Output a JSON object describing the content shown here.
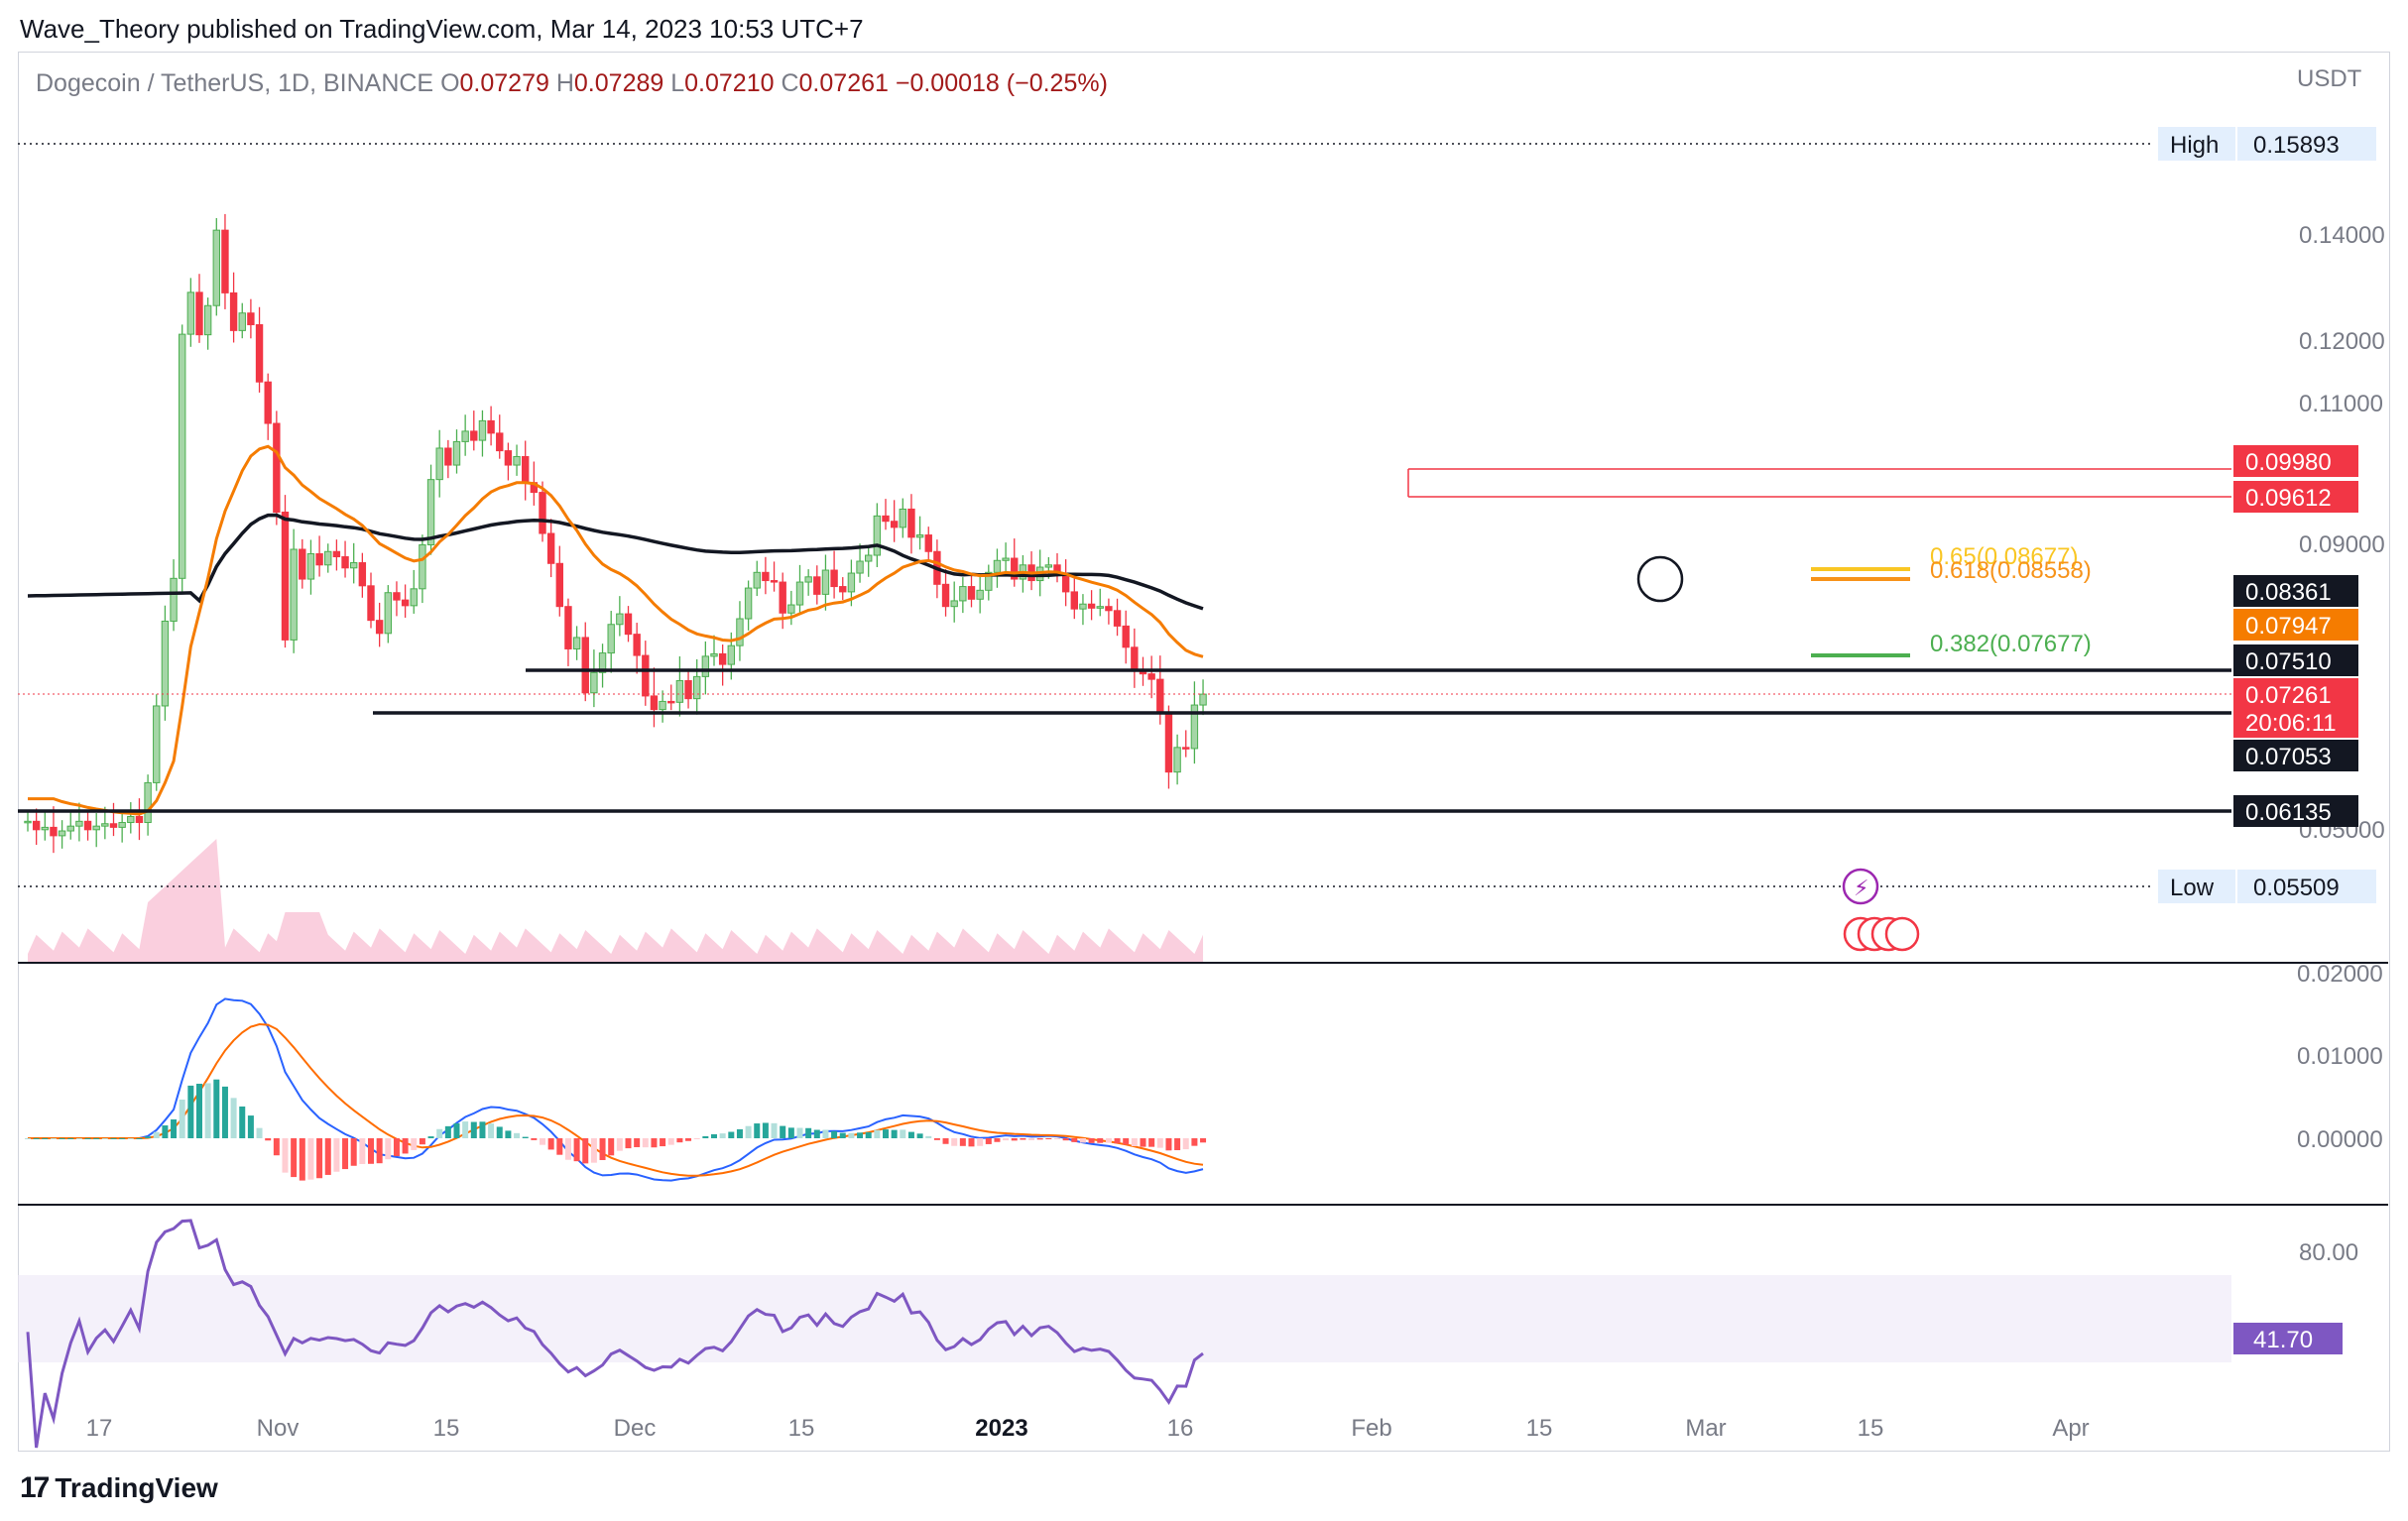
{
  "publisher": "Wave_Theory published on TradingView.com, Mar 14, 2023 10:53 UTC+7",
  "symbol": {
    "name": "Dogecoin / TetherUS, 1D, BINANCE",
    "o_label": "O",
    "o": "0.07279",
    "h_label": "H",
    "h": "0.07289",
    "l_label": "L",
    "l": "0.07210",
    "c_label": "C",
    "c": "0.07261",
    "change": "−0.00018 (−0.25%)"
  },
  "currency": "USDT",
  "footer_brand": "TradingView",
  "colors": {
    "up": "#26a69a",
    "down": "#ef5350",
    "candle_up": "#4caf50",
    "candle_down": "#f23645",
    "ema_black": "#131722",
    "ema_orange": "#f57c00",
    "macd": "#2962ff",
    "signal": "#ff6d00",
    "rsi": "#7e57c2",
    "fib_green": "#4caf50",
    "fib_yellow": "#f9c623",
    "fib_orange": "#f7931a"
  },
  "chart_data": {
    "type": "candlestick",
    "price_axis_ticks": [
      "0.14000",
      "0.12000",
      "0.11000",
      "0.09000",
      "0.05000"
    ],
    "x_tick_labels": [
      "17",
      "Nov",
      "15",
      "Dec",
      "15",
      "2023",
      "16",
      "Feb",
      "15",
      "Mar",
      "15",
      "Apr"
    ],
    "markers": {
      "high_label": "High",
      "high": "0.15893",
      "low_label": "Low",
      "low": "0.05509"
    },
    "price_labels": [
      {
        "text": "0.09980",
        "style": "red"
      },
      {
        "text": "0.09612",
        "style": "red"
      },
      {
        "text": "0.08361",
        "style": "black"
      },
      {
        "text": "0.07947",
        "style": "orange"
      },
      {
        "text": "0.07510",
        "style": "black"
      },
      {
        "text": "0.07261",
        "style": "red"
      },
      {
        "text": "20:06:11",
        "style": "red"
      },
      {
        "text": "0.07053",
        "style": "black"
      },
      {
        "text": "0.06135",
        "style": "black"
      }
    ],
    "fib_levels": [
      {
        "label": "0.65(0.08677)",
        "color": "yellow"
      },
      {
        "label": "0.618(0.08558)",
        "color": "orange"
      },
      {
        "label": "0.382(0.07677)",
        "color": "green"
      }
    ],
    "support_resistance": [
      "0.07510",
      "0.07053",
      "0.06135",
      "0.09980",
      "0.09612"
    ],
    "closes": [
      0.0605,
      0.0598,
      0.06,
      0.0593,
      0.0597,
      0.0601,
      0.0605,
      0.0598,
      0.0601,
      0.0603,
      0.06,
      0.0604,
      0.0609,
      0.0604,
      0.064,
      0.0713,
      0.0799,
      0.0853,
      0.1211,
      0.129,
      0.121,
      0.1265,
      0.1408,
      0.1289,
      0.1218,
      0.1251,
      0.1229,
      0.1133,
      0.1068,
      0.0941,
      0.0776,
      0.0892,
      0.0852,
      0.0886,
      0.0871,
      0.0889,
      0.0882,
      0.0867,
      0.0874,
      0.0843,
      0.08,
      0.0784,
      0.0834,
      0.0825,
      0.0818,
      0.0839,
      0.0898,
      0.0984,
      0.103,
      0.1004,
      0.104,
      0.1056,
      0.1042,
      0.1072,
      0.1053,
      0.1026,
      0.1004,
      0.1017,
      0.098,
      0.0967,
      0.0913,
      0.0873,
      0.0817,
      0.0765,
      0.0779,
      0.0727,
      0.0742,
      0.076,
      0.0795,
      0.0808,
      0.0783,
      0.0757,
      0.0724,
      0.0709,
      0.0718,
      0.0717,
      0.0736,
      0.0721,
      0.0739,
      0.0756,
      0.0759,
      0.0748,
      0.0769,
      0.0802,
      0.084,
      0.0861,
      0.085,
      0.0848,
      0.0809,
      0.0819,
      0.0848,
      0.0855,
      0.0832,
      0.0864,
      0.0842,
      0.0835,
      0.086,
      0.0876,
      0.0884,
      0.0936,
      0.0929,
      0.0921,
      0.0945,
      0.0908,
      0.0911,
      0.0889,
      0.0845,
      0.0817,
      0.0824,
      0.0842,
      0.0826,
      0.0837,
      0.0861,
      0.0877,
      0.088,
      0.0852,
      0.0871,
      0.085,
      0.0868,
      0.0871,
      0.0858,
      0.0835,
      0.0814,
      0.082,
      0.0815,
      0.0817,
      0.0812,
      0.0793,
      0.0767,
      0.0744,
      0.0741,
      0.0737,
      0.0705,
      0.065,
      0.0673,
      0.0672,
      0.0714,
      0.0726
    ]
  }
}
